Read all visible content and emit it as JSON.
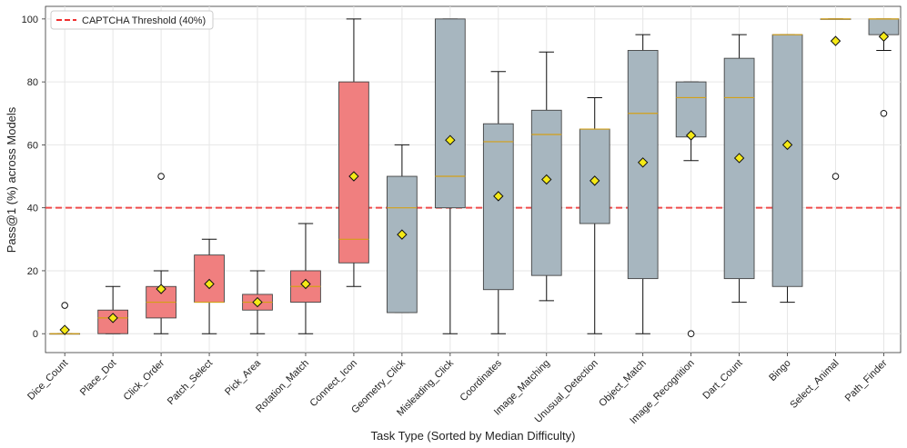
{
  "chart_data": {
    "type": "boxplot",
    "title": "",
    "xlabel": "Task Type (Sorted by Median Difficulty)",
    "ylabel": "Pass@1 (%) across Models",
    "ylim": [
      -6,
      104
    ],
    "yticks": [
      0,
      20,
      40,
      60,
      80,
      100
    ],
    "grid": true,
    "threshold": {
      "value": 40,
      "label": "CAPTCHA Threshold (40%)",
      "color": "#f03030"
    },
    "legend_position": "top-left",
    "colors": {
      "below": "#f07f7f",
      "above": "#a7b6bf",
      "median": "#d4a017",
      "mean": "#f5e916"
    },
    "categories": [
      "Dice_Count",
      "Place_Dot",
      "Click_Order",
      "Patch_Select",
      "Pick_Area",
      "Rotation_Match",
      "Connect_Icon",
      "Geometry_Click",
      "Misleading_Click",
      "Coordinates",
      "Image_Matching",
      "Unusual_Detection",
      "Object_Match",
      "Image_Recognition",
      "Dart_Count",
      "Bingo",
      "Select_Animal",
      "Path_Finder"
    ],
    "boxes": [
      {
        "q1": 0,
        "median": 0,
        "q3": 0,
        "whislo": 0,
        "whishi": 0,
        "mean": 1.2,
        "fliers": [
          9
        ],
        "group": "below"
      },
      {
        "q1": 0,
        "median": 5,
        "q3": 7.5,
        "whislo": 0,
        "whishi": 15,
        "mean": 5,
        "fliers": [],
        "group": "below"
      },
      {
        "q1": 5,
        "median": 10,
        "q3": 15,
        "whislo": 0,
        "whishi": 20,
        "mean": 14.2,
        "fliers": [
          50
        ],
        "group": "below"
      },
      {
        "q1": 10,
        "median": 10,
        "q3": 25,
        "whislo": 0,
        "whishi": 30,
        "mean": 15.8,
        "fliers": [],
        "group": "below"
      },
      {
        "q1": 7.5,
        "median": 10,
        "q3": 12.5,
        "whislo": 0,
        "whishi": 20,
        "mean": 10,
        "fliers": [],
        "group": "below"
      },
      {
        "q1": 10,
        "median": 15,
        "q3": 20,
        "whislo": 0,
        "whishi": 35,
        "mean": 15.8,
        "fliers": [],
        "group": "below"
      },
      {
        "q1": 22.5,
        "median": 30,
        "q3": 80,
        "whislo": 15,
        "whishi": 100,
        "mean": 50,
        "fliers": [],
        "group": "below"
      },
      {
        "q1": 6.7,
        "median": 40,
        "q3": 50,
        "whislo": 6.7,
        "whishi": 60,
        "mean": 31.5,
        "fliers": [],
        "group": "above"
      },
      {
        "q1": 40,
        "median": 50,
        "q3": 100,
        "whislo": 0,
        "whishi": 100,
        "mean": 61.5,
        "fliers": [],
        "group": "above"
      },
      {
        "q1": 14,
        "median": 61,
        "q3": 66.7,
        "whislo": 0,
        "whishi": 83.3,
        "mean": 43.7,
        "fliers": [],
        "group": "above"
      },
      {
        "q1": 18.5,
        "median": 63.3,
        "q3": 71,
        "whislo": 10.5,
        "whishi": 89.5,
        "mean": 49,
        "fliers": [],
        "group": "above"
      },
      {
        "q1": 35,
        "median": 65,
        "q3": 65,
        "whislo": 0,
        "whishi": 75,
        "mean": 48.6,
        "fliers": [],
        "group": "above"
      },
      {
        "q1": 17.5,
        "median": 70,
        "q3": 90,
        "whislo": 0,
        "whishi": 95,
        "mean": 54.4,
        "fliers": [],
        "group": "above"
      },
      {
        "q1": 62.5,
        "median": 75,
        "q3": 80,
        "whislo": 55,
        "whishi": 80,
        "mean": 63,
        "fliers": [
          0
        ],
        "group": "above"
      },
      {
        "q1": 17.5,
        "median": 75,
        "q3": 87.5,
        "whislo": 10,
        "whishi": 95,
        "mean": 55.8,
        "fliers": [],
        "group": "above"
      },
      {
        "q1": 15,
        "median": 95,
        "q3": 95,
        "whislo": 10,
        "whishi": 95,
        "mean": 60,
        "fliers": [],
        "group": "above"
      },
      {
        "q1": 100,
        "median": 100,
        "q3": 100,
        "whislo": 100,
        "whishi": 100,
        "mean": 93,
        "fliers": [
          50
        ],
        "group": "above"
      },
      {
        "q1": 95,
        "median": 100,
        "q3": 100,
        "whislo": 90,
        "whishi": 100,
        "mean": 94.4,
        "fliers": [
          70
        ],
        "group": "above"
      }
    ]
  }
}
